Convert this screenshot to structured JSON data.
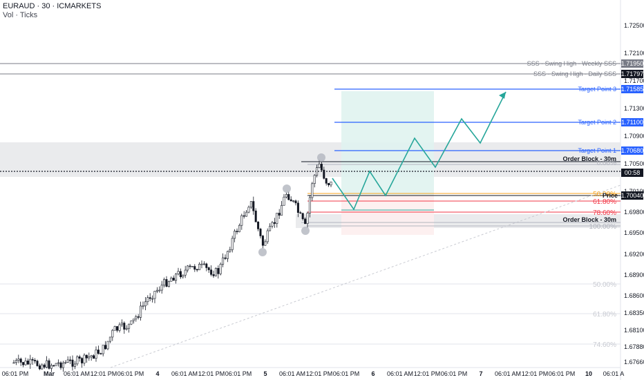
{
  "header": {
    "symbol_line": "EURAUD · 30 · ICMARKETS",
    "volume_line": "Vol · Ticks"
  },
  "colors": {
    "up_candle": "#ffffff",
    "down_candle": "#131722",
    "target_line": "#2962ff",
    "projection": "#26a69a",
    "fib_orange": "#f7a21b",
    "fib_red": "#f23645",
    "fib_gray": "#b2b5be",
    "zone_gray": "#e6e7ea",
    "profit_zone": "#e0f3ef",
    "loss_zone": "#fdeeee"
  },
  "price_axis": {
    "ticks": [
      "1.72500",
      "1.72100",
      "1.71700",
      "1.71300",
      "1.70900",
      "1.70500",
      "1.70100",
      "1.69800",
      "1.69500",
      "1.69200",
      "1.68900",
      "1.68600",
      "1.68350",
      "1.68100",
      "1.67880",
      "1.67660"
    ],
    "badges": {
      "weekly": "1.71950",
      "daily": "1.71797",
      "tp3": "1.71585",
      "tp2": "1.71100",
      "tp1": "1.70680",
      "countdown": "00:58",
      "price": "1.70040"
    }
  },
  "time_axis": {
    "labels": [
      "06:01 PM",
      "Mar",
      "06:01 AM",
      "12:01 PM",
      "06:01 PM",
      "4",
      "06:01 AM",
      "12:01 PM",
      "06:01 PM",
      "5",
      "06:01 AM",
      "12:01 PM",
      "06:01 PM",
      "6",
      "06:01 AM",
      "12:01 PM",
      "06:01 PM",
      "7",
      "06:01 AM",
      "12:01 PM",
      "06:01 PM",
      "10",
      "06:01 A"
    ]
  },
  "annotations": {
    "sss_weekly": "SSS - Swing High - Weekly SSS",
    "sss_daily": "SSS - Swing High - Daily SSS",
    "target3": "Target Point 3",
    "target2": "Target Point 2",
    "target1": "Target Point 1",
    "order_block_top": "Order Block - 30m",
    "order_block_bottom": "Order Block - 30m",
    "price_label": "Price",
    "fib_upper": [
      "0.00%",
      "50.00%",
      "61.80%",
      "78.60%",
      "100.00%"
    ],
    "fib_lower": [
      "50.00%",
      "61.80%",
      "74.60%"
    ]
  }
}
